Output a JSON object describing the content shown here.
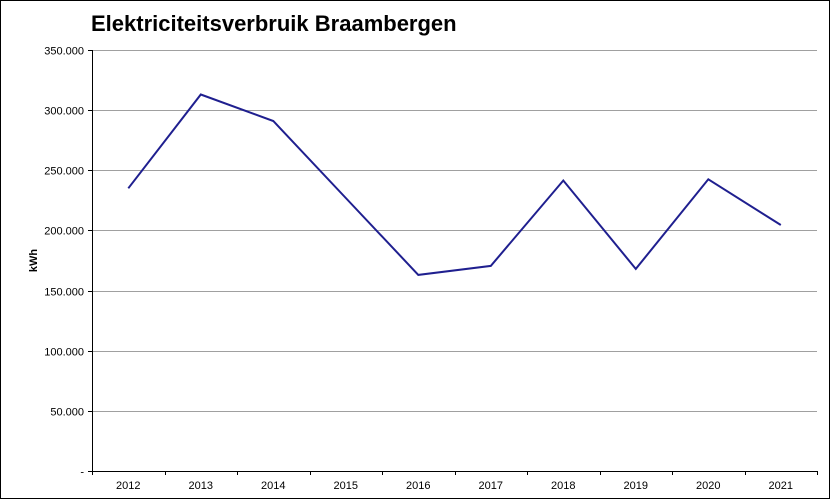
{
  "chart_data": {
    "type": "line",
    "title": "Elektriciteitsverbruik Braambergen",
    "xlabel": "",
    "ylabel": "kWh",
    "categories": [
      "2012",
      "2013",
      "2014",
      "2015",
      "2016",
      "2017",
      "2018",
      "2019",
      "2020",
      "2021"
    ],
    "series": [
      {
        "values": [
          235000,
          313000,
          291000,
          227000,
          163000,
          170500,
          241500,
          168000,
          242500,
          204500
        ]
      }
    ],
    "ylim": [
      0,
      350000
    ],
    "y_ticks": [
      0,
      50000,
      100000,
      150000,
      200000,
      250000,
      300000,
      350000
    ],
    "y_tick_labels": [
      "-",
      "50.000",
      "100.000",
      "150.000",
      "200.000",
      "250.000",
      "300.000",
      "350.000"
    ],
    "grid": true,
    "line_color": "#1f1f8f",
    "grid_color": "#a0a0a0"
  }
}
